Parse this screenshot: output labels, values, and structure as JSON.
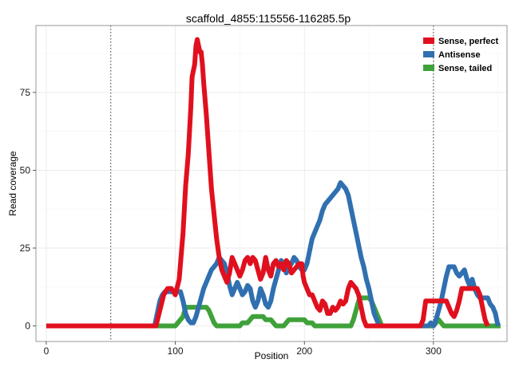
{
  "chart_data": {
    "type": "line",
    "title": "scaffold_4855:115556-116285.5p",
    "xlabel": "Position",
    "ylabel": "Read coverage",
    "xlim": [
      -8,
      357
    ],
    "ylim": [
      -5,
      96.5
    ],
    "xticks": [
      0,
      100,
      200,
      300
    ],
    "yticks": [
      0,
      25,
      50,
      75
    ],
    "xminor": [
      50,
      150,
      250,
      350
    ],
    "yminor": [
      12.5,
      37.5,
      62.5,
      87.5
    ],
    "vlines": [
      50,
      300
    ],
    "grid": true,
    "legend_position": "top-right",
    "series": [
      {
        "name": "Sense, perfect",
        "color": "#e0101e",
        "points": [
          [
            0,
            0
          ],
          [
            85,
            0
          ],
          [
            88,
            5
          ],
          [
            91,
            10
          ],
          [
            94,
            12
          ],
          [
            97,
            12
          ],
          [
            100,
            10
          ],
          [
            103,
            15
          ],
          [
            106,
            30
          ],
          [
            108,
            45
          ],
          [
            110,
            55
          ],
          [
            112,
            70
          ],
          [
            113,
            80
          ],
          [
            115,
            84
          ],
          [
            116,
            90
          ],
          [
            117,
            92
          ],
          [
            118,
            90
          ],
          [
            119,
            88
          ],
          [
            120,
            88
          ],
          [
            121,
            84
          ],
          [
            122,
            78
          ],
          [
            124,
            68
          ],
          [
            126,
            56
          ],
          [
            128,
            44
          ],
          [
            130,
            36
          ],
          [
            132,
            28
          ],
          [
            134,
            22
          ],
          [
            136,
            18
          ],
          [
            138,
            16
          ],
          [
            140,
            14
          ],
          [
            142,
            17
          ],
          [
            144,
            22
          ],
          [
            146,
            20
          ],
          [
            148,
            18
          ],
          [
            150,
            16
          ],
          [
            152,
            18
          ],
          [
            154,
            21
          ],
          [
            156,
            22
          ],
          [
            158,
            20
          ],
          [
            160,
            22
          ],
          [
            162,
            21
          ],
          [
            164,
            18
          ],
          [
            166,
            15
          ],
          [
            168,
            17
          ],
          [
            170,
            22
          ],
          [
            172,
            18
          ],
          [
            174,
            16
          ],
          [
            176,
            20
          ],
          [
            178,
            21
          ],
          [
            180,
            19
          ],
          [
            182,
            20
          ],
          [
            184,
            18
          ],
          [
            186,
            21
          ],
          [
            188,
            20
          ],
          [
            190,
            17
          ],
          [
            192,
            18
          ],
          [
            194,
            19
          ],
          [
            196,
            20
          ],
          [
            198,
            20
          ],
          [
            199,
            16
          ],
          [
            200,
            14
          ],
          [
            202,
            12
          ],
          [
            204,
            10
          ],
          [
            206,
            10
          ],
          [
            208,
            8
          ],
          [
            210,
            6
          ],
          [
            212,
            5
          ],
          [
            214,
            8
          ],
          [
            216,
            7
          ],
          [
            218,
            4
          ],
          [
            220,
            4
          ],
          [
            222,
            6
          ],
          [
            224,
            5
          ],
          [
            226,
            6
          ],
          [
            228,
            8
          ],
          [
            230,
            7
          ],
          [
            232,
            8
          ],
          [
            234,
            12
          ],
          [
            236,
            14
          ],
          [
            238,
            13
          ],
          [
            240,
            12
          ],
          [
            242,
            10
          ],
          [
            244,
            6
          ],
          [
            246,
            2
          ],
          [
            248,
            0
          ],
          [
            290,
            0
          ],
          [
            292,
            2
          ],
          [
            294,
            8
          ],
          [
            310,
            8
          ],
          [
            312,
            6
          ],
          [
            314,
            4
          ],
          [
            316,
            3
          ],
          [
            318,
            5
          ],
          [
            320,
            8
          ],
          [
            322,
            12
          ],
          [
            334,
            12
          ],
          [
            336,
            10
          ],
          [
            338,
            6
          ],
          [
            340,
            2
          ],
          [
            342,
            0
          ]
        ]
      },
      {
        "name": "Antisense",
        "color": "#3070b0",
        "points": [
          [
            0,
            0
          ],
          [
            84,
            0
          ],
          [
            86,
            4
          ],
          [
            88,
            8
          ],
          [
            90,
            10
          ],
          [
            92,
            11
          ],
          [
            104,
            11
          ],
          [
            106,
            8
          ],
          [
            108,
            4
          ],
          [
            110,
            2
          ],
          [
            112,
            1
          ],
          [
            114,
            1
          ],
          [
            116,
            3
          ],
          [
            118,
            6
          ],
          [
            120,
            9
          ],
          [
            122,
            12
          ],
          [
            124,
            14
          ],
          [
            126,
            16
          ],
          [
            128,
            18
          ],
          [
            130,
            19
          ],
          [
            132,
            20
          ],
          [
            134,
            22
          ],
          [
            136,
            21
          ],
          [
            138,
            20
          ],
          [
            140,
            17
          ],
          [
            142,
            13
          ],
          [
            144,
            10
          ],
          [
            146,
            12
          ],
          [
            148,
            14
          ],
          [
            150,
            12
          ],
          [
            152,
            10
          ],
          [
            154,
            11
          ],
          [
            156,
            13
          ],
          [
            158,
            12
          ],
          [
            160,
            8
          ],
          [
            162,
            6
          ],
          [
            164,
            8
          ],
          [
            166,
            12
          ],
          [
            168,
            10
          ],
          [
            170,
            7
          ],
          [
            172,
            6
          ],
          [
            174,
            8
          ],
          [
            176,
            12
          ],
          [
            178,
            15
          ],
          [
            180,
            18
          ],
          [
            182,
            21
          ],
          [
            184,
            20
          ],
          [
            186,
            17
          ],
          [
            188,
            19
          ],
          [
            190,
            20
          ],
          [
            192,
            22
          ],
          [
            194,
            21
          ],
          [
            196,
            19
          ],
          [
            198,
            18
          ],
          [
            200,
            18
          ],
          [
            202,
            20
          ],
          [
            204,
            24
          ],
          [
            206,
            28
          ],
          [
            208,
            30
          ],
          [
            210,
            32
          ],
          [
            212,
            34
          ],
          [
            214,
            37
          ],
          [
            216,
            39
          ],
          [
            218,
            40
          ],
          [
            220,
            41
          ],
          [
            222,
            42
          ],
          [
            224,
            43
          ],
          [
            226,
            44
          ],
          [
            228,
            46
          ],
          [
            230,
            45
          ],
          [
            232,
            44
          ],
          [
            234,
            42
          ],
          [
            236,
            38
          ],
          [
            238,
            34
          ],
          [
            240,
            30
          ],
          [
            242,
            26
          ],
          [
            244,
            22
          ],
          [
            246,
            19
          ],
          [
            248,
            15
          ],
          [
            250,
            12
          ],
          [
            252,
            8
          ],
          [
            254,
            4
          ],
          [
            256,
            2
          ],
          [
            258,
            0
          ],
          [
            296,
            0
          ],
          [
            298,
            1
          ],
          [
            300,
            0
          ],
          [
            302,
            2
          ],
          [
            304,
            5
          ],
          [
            306,
            8
          ],
          [
            308,
            12
          ],
          [
            310,
            16
          ],
          [
            312,
            19
          ],
          [
            316,
            19
          ],
          [
            318,
            17
          ],
          [
            320,
            16
          ],
          [
            322,
            17
          ],
          [
            324,
            18
          ],
          [
            326,
            15
          ],
          [
            328,
            13
          ],
          [
            330,
            15
          ],
          [
            332,
            12
          ],
          [
            334,
            10
          ],
          [
            336,
            9
          ],
          [
            342,
            9
          ],
          [
            344,
            7
          ],
          [
            346,
            6
          ],
          [
            348,
            4
          ],
          [
            350,
            0
          ]
        ]
      },
      {
        "name": "Sense, tailed",
        "color": "#3fa13a",
        "points": [
          [
            0,
            0
          ],
          [
            100,
            0
          ],
          [
            102,
            1
          ],
          [
            104,
            2
          ],
          [
            106,
            3
          ],
          [
            108,
            6
          ],
          [
            124,
            6
          ],
          [
            126,
            5
          ],
          [
            128,
            3
          ],
          [
            130,
            1
          ],
          [
            132,
            0
          ],
          [
            150,
            0
          ],
          [
            152,
            1
          ],
          [
            156,
            1
          ],
          [
            158,
            2
          ],
          [
            160,
            3
          ],
          [
            168,
            3
          ],
          [
            170,
            2
          ],
          [
            174,
            2
          ],
          [
            176,
            1
          ],
          [
            178,
            0
          ],
          [
            184,
            0
          ],
          [
            186,
            1
          ],
          [
            188,
            2
          ],
          [
            200,
            2
          ],
          [
            202,
            1
          ],
          [
            206,
            1
          ],
          [
            208,
            0
          ],
          [
            236,
            0
          ],
          [
            238,
            2
          ],
          [
            240,
            5
          ],
          [
            242,
            8
          ],
          [
            244,
            9
          ],
          [
            250,
            9
          ],
          [
            252,
            8
          ],
          [
            254,
            6
          ],
          [
            256,
            4
          ],
          [
            258,
            2
          ],
          [
            260,
            0
          ],
          [
            300,
            0
          ],
          [
            302,
            1
          ],
          [
            304,
            2
          ],
          [
            306,
            1
          ],
          [
            308,
            0
          ],
          [
            352,
            0
          ]
        ]
      }
    ]
  }
}
